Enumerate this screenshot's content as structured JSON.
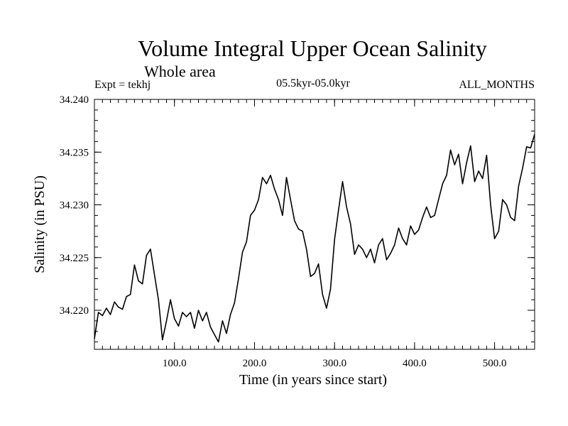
{
  "chart_data": {
    "type": "line",
    "title": "Volume Integral Upper Ocean Salinity",
    "subtitle": "Whole area",
    "left_label": "Expt = tekhj",
    "center_label": "05.5kyr-05.0kyr",
    "right_label": "ALL_MONTHS",
    "xlabel": "Time (in years since start)",
    "ylabel": "Salinity (in PSU)",
    "xlim": [
      0,
      550
    ],
    "ylim": [
      34.2163,
      34.24
    ],
    "x_ticks": [
      100,
      200,
      300,
      400,
      500
    ],
    "x_tick_labels": [
      "100.0",
      "200.0",
      "300.0",
      "400.0",
      "500.0"
    ],
    "y_ticks": [
      34.22,
      34.225,
      34.23,
      34.235,
      34.24
    ],
    "y_tick_labels": [
      "34.220",
      "34.225",
      "34.230",
      "34.235",
      "34.240"
    ],
    "series": [
      {
        "name": "Salinity",
        "color": "#000000",
        "x": [
          0,
          5,
          10,
          15,
          20,
          25,
          30,
          35,
          40,
          45,
          50,
          55,
          60,
          65,
          70,
          75,
          80,
          85,
          90,
          95,
          100,
          105,
          110,
          115,
          120,
          125,
          130,
          135,
          140,
          145,
          150,
          155,
          160,
          165,
          170,
          175,
          180,
          185,
          190,
          195,
          200,
          205,
          210,
          215,
          220,
          225,
          230,
          235,
          240,
          245,
          250,
          255,
          260,
          265,
          270,
          275,
          280,
          285,
          290,
          295,
          300,
          305,
          310,
          315,
          320,
          325,
          330,
          335,
          340,
          345,
          350,
          355,
          360,
          365,
          370,
          375,
          380,
          385,
          390,
          395,
          400,
          405,
          410,
          415,
          420,
          425,
          430,
          435,
          440,
          445,
          450,
          455,
          460,
          465,
          470,
          475,
          480,
          485,
          490,
          495,
          500,
          505,
          510,
          515,
          520,
          525,
          530,
          535,
          540,
          545,
          550
        ],
        "values": [
          34.2173,
          34.2198,
          34.2195,
          34.2202,
          34.2196,
          34.2208,
          34.2203,
          34.2201,
          34.2213,
          34.2215,
          34.2243,
          34.2228,
          34.2225,
          34.2252,
          34.2258,
          34.2234,
          34.221,
          34.2172,
          34.219,
          34.221,
          34.2192,
          34.2185,
          34.2198,
          34.2194,
          34.2198,
          34.2183,
          34.22,
          34.219,
          34.2198,
          34.2184,
          34.2177,
          34.217,
          34.219,
          34.2178,
          34.2196,
          34.2207,
          34.223,
          34.2255,
          34.2265,
          34.229,
          34.2295,
          34.2305,
          34.2326,
          34.232,
          34.2328,
          34.2315,
          34.2305,
          34.229,
          34.2326,
          34.2305,
          34.2285,
          34.2277,
          34.2275,
          34.2258,
          34.2232,
          34.2235,
          34.2244,
          34.2215,
          34.2202,
          34.222,
          34.2267,
          34.2295,
          34.2322,
          34.2298,
          34.2282,
          34.2253,
          34.2262,
          34.2258,
          34.225,
          34.2258,
          34.2245,
          34.2262,
          34.2268,
          34.2248,
          34.2254,
          34.2262,
          34.2278,
          34.2268,
          34.2262,
          34.228,
          34.2272,
          34.2276,
          34.2288,
          34.2298,
          34.2288,
          34.229,
          34.2305,
          34.232,
          34.2328,
          34.2352,
          34.2338,
          34.2348,
          34.232,
          34.234,
          34.2356,
          34.2322,
          34.2332,
          34.2325,
          34.2347,
          34.23,
          34.2268,
          34.2275,
          34.2305,
          34.23,
          34.2288,
          34.2285,
          34.2318,
          34.2335,
          34.2355,
          34.2354,
          34.2367
        ]
      }
    ]
  }
}
